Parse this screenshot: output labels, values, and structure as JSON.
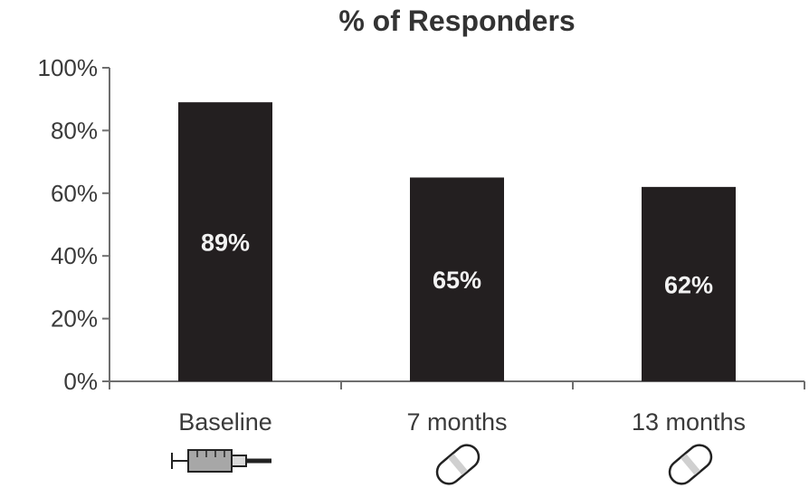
{
  "chart_data": {
    "type": "bar",
    "title": "% of Responders",
    "categories": [
      "Baseline",
      "7 months",
      "13 months"
    ],
    "values": [
      89,
      65,
      62
    ],
    "data_labels": [
      "89%",
      "65%",
      "62%"
    ],
    "ylim": [
      0,
      100
    ],
    "yticks": [
      "0%",
      "20%",
      "40%",
      "60%",
      "80%",
      "100%"
    ],
    "xlabel": "",
    "ylabel": "",
    "grid": false,
    "bar_color": "#231f20",
    "category_icons": [
      "syringe-icon",
      "pill-icon",
      "pill-icon"
    ]
  }
}
